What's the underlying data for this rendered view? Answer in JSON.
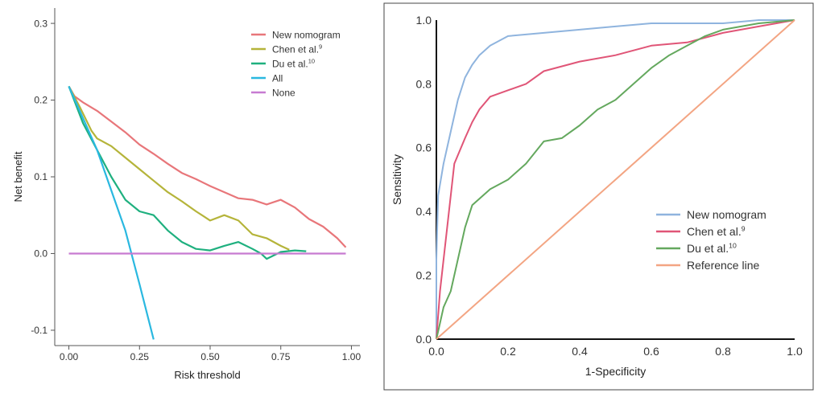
{
  "chart_data": [
    {
      "type": "line",
      "title": "",
      "xlabel": "Risk threshold",
      "ylabel": "Net benefit",
      "xlim": [
        -0.05,
        1.03
      ],
      "ylim": [
        -0.12,
        0.32
      ],
      "x_ticks": [
        0.0,
        0.25,
        0.5,
        0.75,
        1.0
      ],
      "x_tick_labels": [
        "0.00",
        "0.25",
        "0.50",
        "0.75",
        "1.00"
      ],
      "y_ticks": [
        -0.1,
        0.0,
        0.1,
        0.2,
        0.3
      ],
      "y_tick_labels": [
        "-0.1",
        "0.0",
        "0.1",
        "0.2",
        "0.3"
      ],
      "grid": false,
      "legend_position": "top-right",
      "series": [
        {
          "name": "New nomogram",
          "color": "#e8767a",
          "points": [
            [
              0.0,
              0.218
            ],
            [
              0.02,
              0.205
            ],
            [
              0.05,
              0.197
            ],
            [
              0.1,
              0.186
            ],
            [
              0.15,
              0.172
            ],
            [
              0.2,
              0.158
            ],
            [
              0.25,
              0.142
            ],
            [
              0.3,
              0.13
            ],
            [
              0.35,
              0.117
            ],
            [
              0.4,
              0.105
            ],
            [
              0.45,
              0.097
            ],
            [
              0.5,
              0.088
            ],
            [
              0.55,
              0.08
            ],
            [
              0.6,
              0.072
            ],
            [
              0.65,
              0.07
            ],
            [
              0.7,
              0.064
            ],
            [
              0.75,
              0.07
            ],
            [
              0.8,
              0.06
            ],
            [
              0.85,
              0.045
            ],
            [
              0.9,
              0.035
            ],
            [
              0.95,
              0.02
            ],
            [
              0.98,
              0.008
            ]
          ]
        },
        {
          "name": "Chen et al.",
          "sup": "9",
          "color": "#b5b43a",
          "points": [
            [
              0.0,
              0.218
            ],
            [
              0.04,
              0.19
            ],
            [
              0.08,
              0.16
            ],
            [
              0.1,
              0.15
            ],
            [
              0.15,
              0.14
            ],
            [
              0.2,
              0.125
            ],
            [
              0.25,
              0.11
            ],
            [
              0.3,
              0.095
            ],
            [
              0.35,
              0.08
            ],
            [
              0.4,
              0.068
            ],
            [
              0.45,
              0.055
            ],
            [
              0.5,
              0.043
            ],
            [
              0.55,
              0.05
            ],
            [
              0.6,
              0.043
            ],
            [
              0.65,
              0.025
            ],
            [
              0.7,
              0.02
            ],
            [
              0.75,
              0.01
            ],
            [
              0.78,
              0.005
            ]
          ]
        },
        {
          "name": "Du et al.",
          "sup": "10",
          "color": "#1fb07f",
          "points": [
            [
              0.0,
              0.218
            ],
            [
              0.05,
              0.17
            ],
            [
              0.1,
              0.135
            ],
            [
              0.15,
              0.1
            ],
            [
              0.2,
              0.07
            ],
            [
              0.25,
              0.055
            ],
            [
              0.3,
              0.05
            ],
            [
              0.35,
              0.03
            ],
            [
              0.4,
              0.015
            ],
            [
              0.45,
              0.006
            ],
            [
              0.5,
              0.004
            ],
            [
              0.55,
              0.01
            ],
            [
              0.6,
              0.015
            ],
            [
              0.65,
              0.006
            ],
            [
              0.68,
              0.0
            ],
            [
              0.7,
              -0.007
            ],
            [
              0.75,
              0.002
            ],
            [
              0.8,
              0.004
            ],
            [
              0.84,
              0.003
            ]
          ]
        },
        {
          "name": "All",
          "color": "#2ab8e0",
          "points": [
            [
              0.0,
              0.218
            ],
            [
              0.1,
              0.135
            ],
            [
              0.2,
              0.03
            ],
            [
              0.25,
              -0.04
            ],
            [
              0.3,
              -0.112
            ]
          ]
        },
        {
          "name": "None",
          "color": "#c77bd1",
          "points": [
            [
              0.0,
              0.0
            ],
            [
              0.98,
              0.0
            ]
          ]
        }
      ]
    },
    {
      "type": "line",
      "title": "",
      "xlabel": "1-Specificity",
      "ylabel": "Sensitivity",
      "xlim": [
        0,
        1
      ],
      "ylim": [
        0,
        1
      ],
      "x_ticks": [
        0,
        0.2,
        0.4,
        0.6,
        0.8,
        1.0
      ],
      "x_tick_labels": [
        "0.0",
        "0.2",
        "0.4",
        "0.6",
        "0.8",
        "1.0"
      ],
      "y_ticks": [
        0,
        0.2,
        0.4,
        0.6,
        0.8,
        1.0
      ],
      "y_tick_labels": [
        "0.0",
        "0.2",
        "0.4",
        "0.6",
        "0.8",
        "1.0"
      ],
      "grid": false,
      "legend_position": "bottom-right",
      "series": [
        {
          "name": "New nomogram",
          "color": "#8fb4de",
          "points": [
            [
              0.0,
              0.0
            ],
            [
              0.0,
              0.25
            ],
            [
              0.005,
              0.45
            ],
            [
              0.02,
              0.55
            ],
            [
              0.04,
              0.65
            ],
            [
              0.06,
              0.75
            ],
            [
              0.08,
              0.82
            ],
            [
              0.1,
              0.86
            ],
            [
              0.12,
              0.89
            ],
            [
              0.15,
              0.92
            ],
            [
              0.2,
              0.95
            ],
            [
              0.3,
              0.96
            ],
            [
              0.4,
              0.97
            ],
            [
              0.5,
              0.98
            ],
            [
              0.6,
              0.99
            ],
            [
              0.8,
              0.99
            ],
            [
              0.9,
              1.0
            ],
            [
              1.0,
              1.0
            ]
          ]
        },
        {
          "name": "Chen et al.",
          "sup": "9",
          "color": "#e05577",
          "points": [
            [
              0.0,
              0.0
            ],
            [
              0.01,
              0.15
            ],
            [
              0.03,
              0.35
            ],
            [
              0.05,
              0.55
            ],
            [
              0.08,
              0.63
            ],
            [
              0.1,
              0.68
            ],
            [
              0.12,
              0.72
            ],
            [
              0.15,
              0.76
            ],
            [
              0.2,
              0.78
            ],
            [
              0.25,
              0.8
            ],
            [
              0.3,
              0.84
            ],
            [
              0.4,
              0.87
            ],
            [
              0.5,
              0.89
            ],
            [
              0.6,
              0.92
            ],
            [
              0.7,
              0.93
            ],
            [
              0.8,
              0.96
            ],
            [
              0.9,
              0.98
            ],
            [
              1.0,
              1.0
            ]
          ]
        },
        {
          "name": "Du et al.",
          "sup": "10",
          "color": "#64a85e",
          "points": [
            [
              0.0,
              0.0
            ],
            [
              0.01,
              0.05
            ],
            [
              0.02,
              0.1
            ],
            [
              0.04,
              0.15
            ],
            [
              0.06,
              0.25
            ],
            [
              0.08,
              0.35
            ],
            [
              0.1,
              0.42
            ],
            [
              0.15,
              0.47
            ],
            [
              0.2,
              0.5
            ],
            [
              0.25,
              0.55
            ],
            [
              0.3,
              0.62
            ],
            [
              0.35,
              0.63
            ],
            [
              0.4,
              0.67
            ],
            [
              0.45,
              0.72
            ],
            [
              0.5,
              0.75
            ],
            [
              0.55,
              0.8
            ],
            [
              0.6,
              0.85
            ],
            [
              0.65,
              0.89
            ],
            [
              0.7,
              0.92
            ],
            [
              0.75,
              0.95
            ],
            [
              0.8,
              0.97
            ],
            [
              0.9,
              0.99
            ],
            [
              1.0,
              1.0
            ]
          ]
        },
        {
          "name": "Reference line",
          "color": "#f3a583",
          "points": [
            [
              0,
              0
            ],
            [
              1,
              1
            ]
          ]
        }
      ]
    }
  ]
}
